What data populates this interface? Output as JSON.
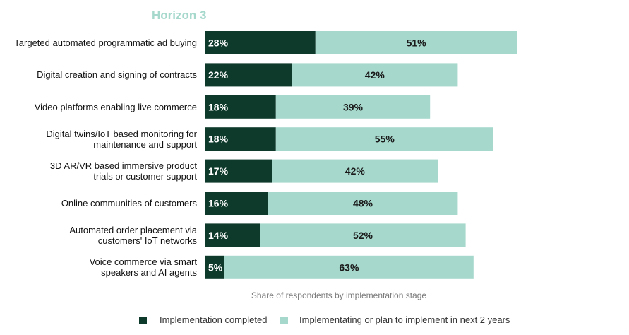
{
  "chart_data": {
    "type": "bar",
    "orientation": "horizontal",
    "stacked": true,
    "title": "Horizon 3",
    "xlabel": "Share of respondents by implementation stage",
    "categories": [
      "Targeted automated programmatic ad buying",
      "Digital creation and signing of contracts",
      "Video platforms enabling live commerce",
      "Digital twins/IoT based monitoring for\nmaintenance and support",
      "3D AR/VR based immersive product\ntrials or customer support",
      "Online communities of customers",
      "Automated order placement via\ncustomers' IoT networks",
      "Voice commerce via smart\nspeakers and AI agents"
    ],
    "series": [
      {
        "name": "Implementation completed",
        "color": "#0e3a2c",
        "values": [
          28,
          22,
          18,
          18,
          17,
          16,
          14,
          5
        ],
        "labels": [
          "28%",
          "22%",
          "18%",
          "18%",
          "17%",
          "16%",
          "14%",
          "5%"
        ]
      },
      {
        "name": "Implementating or plan to implement in next 2 years",
        "color": "#a6d8cc",
        "values": [
          51,
          42,
          39,
          55,
          42,
          48,
          52,
          63
        ],
        "labels": [
          "51%",
          "42%",
          "39%",
          "55%",
          "42%",
          "48%",
          "52%",
          "63%"
        ]
      }
    ],
    "legend_position": "bottom",
    "grid": false
  }
}
